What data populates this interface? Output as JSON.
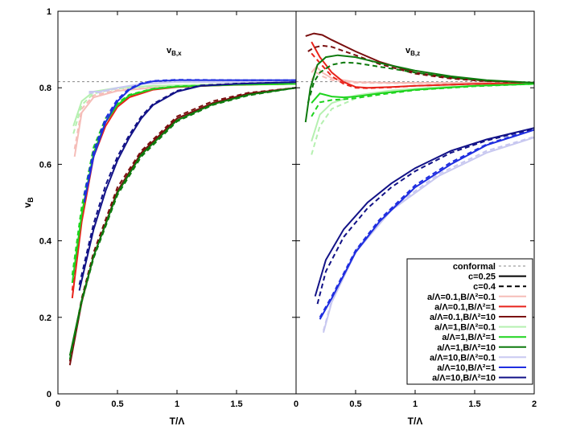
{
  "chart_data": [
    {
      "type": "line",
      "title": "v",
      "title_sub": "B,x",
      "xlabel": "T/Λ",
      "ylabel": "v",
      "ylabel_sub": "B",
      "xlim": [
        0,
        2
      ],
      "ylim": [
        0,
        1
      ],
      "xticks": [
        "0",
        "0.5",
        "1",
        "1.5",
        ""
      ],
      "yticks": [
        "0",
        "0.2",
        "0.4",
        "0.6",
        "0.8",
        "1"
      ],
      "series": [
        {
          "key": "conformal",
          "x": [
            0,
            2
          ],
          "y": [
            0.816,
            0.816
          ]
        },
        {
          "key": "a01_b01",
          "style": "solid",
          "x": [
            0.14,
            0.2,
            0.3,
            0.5,
            0.8,
            1.2,
            2.0
          ],
          "y": [
            0.62,
            0.735,
            0.775,
            0.792,
            0.8,
            0.805,
            0.81
          ]
        },
        {
          "key": "a01_b01",
          "style": "dashed",
          "x": [
            0.14,
            0.2,
            0.3,
            0.5,
            0.8,
            1.2,
            2.0
          ],
          "y": [
            0.64,
            0.745,
            0.78,
            0.794,
            0.801,
            0.806,
            0.81
          ]
        },
        {
          "key": "a01_b1",
          "style": "solid",
          "x": [
            0.12,
            0.2,
            0.3,
            0.4,
            0.5,
            0.6,
            0.8,
            1.0,
            1.5,
            2.0
          ],
          "y": [
            0.25,
            0.45,
            0.62,
            0.7,
            0.75,
            0.775,
            0.795,
            0.802,
            0.808,
            0.81
          ]
        },
        {
          "key": "a01_b1",
          "style": "dashed",
          "x": [
            0.12,
            0.2,
            0.3,
            0.4,
            0.5,
            0.6,
            0.8,
            1.0,
            1.5,
            2.0
          ],
          "y": [
            0.27,
            0.47,
            0.635,
            0.71,
            0.755,
            0.778,
            0.796,
            0.803,
            0.808,
            0.81
          ]
        },
        {
          "key": "a01_b10",
          "style": "solid",
          "x": [
            0.1,
            0.2,
            0.3,
            0.5,
            0.7,
            1.0,
            1.3,
            1.6,
            2.0
          ],
          "y": [
            0.075,
            0.24,
            0.36,
            0.53,
            0.63,
            0.72,
            0.76,
            0.785,
            0.8
          ]
        },
        {
          "key": "a01_b10",
          "style": "dashed",
          "x": [
            0.1,
            0.2,
            0.3,
            0.5,
            0.7,
            1.0,
            1.3,
            1.6,
            2.0
          ],
          "y": [
            0.085,
            0.25,
            0.37,
            0.54,
            0.635,
            0.725,
            0.765,
            0.787,
            0.8
          ]
        },
        {
          "key": "a1_b01",
          "style": "solid",
          "x": [
            0.13,
            0.2,
            0.3,
            0.5,
            0.8,
            1.2,
            2.0
          ],
          "y": [
            0.7,
            0.765,
            0.79,
            0.8,
            0.805,
            0.808,
            0.81
          ]
        },
        {
          "key": "a1_b01",
          "style": "dashed",
          "x": [
            0.13,
            0.2,
            0.3,
            0.5,
            0.8,
            1.2,
            2.0
          ],
          "y": [
            0.68,
            0.755,
            0.785,
            0.798,
            0.805,
            0.808,
            0.81
          ]
        },
        {
          "key": "a1_b1",
          "style": "solid",
          "x": [
            0.12,
            0.2,
            0.3,
            0.4,
            0.5,
            0.6,
            0.8,
            1.0,
            1.5,
            2.0
          ],
          "y": [
            0.29,
            0.47,
            0.63,
            0.71,
            0.755,
            0.78,
            0.797,
            0.803,
            0.808,
            0.81
          ]
        },
        {
          "key": "a1_b1",
          "style": "dashed",
          "x": [
            0.12,
            0.2,
            0.3,
            0.4,
            0.5,
            0.6,
            0.8,
            1.0,
            1.5,
            2.0
          ],
          "y": [
            0.31,
            0.49,
            0.645,
            0.72,
            0.76,
            0.782,
            0.798,
            0.804,
            0.808,
            0.81
          ]
        },
        {
          "key": "a1_b10",
          "style": "solid",
          "x": [
            0.1,
            0.2,
            0.3,
            0.5,
            0.7,
            1.0,
            1.3,
            1.6,
            2.0
          ],
          "y": [
            0.1,
            0.245,
            0.36,
            0.525,
            0.625,
            0.715,
            0.757,
            0.782,
            0.8
          ]
        },
        {
          "key": "a1_b10",
          "style": "dashed",
          "x": [
            0.1,
            0.2,
            0.3,
            0.5,
            0.7,
            1.0,
            1.3,
            1.6,
            2.0
          ],
          "y": [
            0.09,
            0.24,
            0.355,
            0.52,
            0.62,
            0.712,
            0.755,
            0.78,
            0.8
          ]
        },
        {
          "key": "a10_b01",
          "style": "solid",
          "x": [
            0.26,
            0.35,
            0.5,
            0.7,
            1.0,
            1.5,
            2.0
          ],
          "y": [
            0.79,
            0.79,
            0.8,
            0.81,
            0.815,
            0.815,
            0.815
          ]
        },
        {
          "key": "a10_b01",
          "style": "dashed",
          "x": [
            0.26,
            0.35,
            0.5,
            0.7,
            1.0,
            1.5,
            2.0
          ],
          "y": [
            0.786,
            0.788,
            0.799,
            0.81,
            0.815,
            0.815,
            0.815
          ]
        },
        {
          "key": "a10_b1",
          "style": "solid",
          "x": [
            0.22,
            0.3,
            0.4,
            0.5,
            0.6,
            0.7,
            0.8,
            1.0,
            1.5,
            2.0
          ],
          "y": [
            0.5,
            0.62,
            0.71,
            0.765,
            0.795,
            0.81,
            0.817,
            0.82,
            0.82,
            0.82
          ]
        },
        {
          "key": "a10_b1",
          "style": "dashed",
          "x": [
            0.22,
            0.3,
            0.4,
            0.5,
            0.6,
            0.7,
            0.8,
            1.0,
            1.5,
            2.0
          ],
          "y": [
            0.52,
            0.635,
            0.72,
            0.77,
            0.798,
            0.812,
            0.818,
            0.821,
            0.82,
            0.82
          ]
        },
        {
          "key": "a10_b10",
          "style": "solid",
          "x": [
            0.18,
            0.3,
            0.4,
            0.5,
            0.6,
            0.7,
            0.8,
            1.0,
            1.2,
            1.5,
            2.0
          ],
          "y": [
            0.27,
            0.43,
            0.53,
            0.61,
            0.67,
            0.72,
            0.755,
            0.79,
            0.805,
            0.81,
            0.815
          ]
        },
        {
          "key": "a10_b10",
          "style": "dashed",
          "x": [
            0.18,
            0.3,
            0.4,
            0.5,
            0.6,
            0.7,
            0.8,
            1.0,
            1.2,
            1.5,
            2.0
          ],
          "y": [
            0.285,
            0.445,
            0.545,
            0.62,
            0.677,
            0.725,
            0.758,
            0.792,
            0.806,
            0.811,
            0.815
          ]
        }
      ]
    },
    {
      "type": "line",
      "title": "v",
      "title_sub": "B,z",
      "xlabel": "T/Λ",
      "xlim": [
        0,
        2
      ],
      "ylim": [
        0,
        1
      ],
      "xticks": [
        "0",
        "0.5",
        "1",
        "1.5",
        "2"
      ],
      "series": [
        {
          "key": "conformal",
          "x": [
            0,
            2
          ],
          "y": [
            0.816,
            0.816
          ]
        },
        {
          "key": "a01_b01",
          "style": "solid",
          "x": [
            0.13,
            0.17,
            0.22,
            0.3,
            0.5,
            0.8,
            1.2,
            2.0
          ],
          "y": [
            0.84,
            0.855,
            0.84,
            0.825,
            0.815,
            0.813,
            0.813,
            0.813
          ]
        },
        {
          "key": "a01_b01",
          "style": "dashed",
          "x": [
            0.13,
            0.17,
            0.22,
            0.3,
            0.5,
            0.8,
            1.2,
            2.0
          ],
          "y": [
            0.82,
            0.84,
            0.83,
            0.82,
            0.813,
            0.812,
            0.812,
            0.813
          ]
        },
        {
          "key": "a01_b1",
          "style": "solid",
          "x": [
            0.13,
            0.2,
            0.3,
            0.4,
            0.5,
            0.6,
            0.8,
            1.0,
            1.5,
            2.0
          ],
          "y": [
            0.92,
            0.88,
            0.84,
            0.815,
            0.802,
            0.8,
            0.802,
            0.805,
            0.81,
            0.812
          ]
        },
        {
          "key": "a01_b1",
          "style": "dashed",
          "x": [
            0.13,
            0.2,
            0.3,
            0.4,
            0.5,
            0.6,
            0.8,
            1.0,
            1.5,
            2.0
          ],
          "y": [
            0.89,
            0.865,
            0.83,
            0.81,
            0.8,
            0.799,
            0.801,
            0.805,
            0.81,
            0.812
          ]
        },
        {
          "key": "a01_b10",
          "style": "solid",
          "x": [
            0.08,
            0.15,
            0.22,
            0.3,
            0.5,
            0.7,
            1.0,
            1.3,
            1.6,
            2.0
          ],
          "y": [
            0.935,
            0.942,
            0.938,
            0.925,
            0.895,
            0.868,
            0.84,
            0.826,
            0.818,
            0.813
          ]
        },
        {
          "key": "a01_b10",
          "style": "dashed",
          "x": [
            0.1,
            0.15,
            0.22,
            0.3,
            0.5,
            0.7,
            1.0,
            1.3,
            1.6,
            2.0
          ],
          "y": [
            0.895,
            0.905,
            0.91,
            0.907,
            0.885,
            0.862,
            0.837,
            0.824,
            0.817,
            0.813
          ]
        },
        {
          "key": "a1_b01",
          "style": "solid",
          "x": [
            0.13,
            0.2,
            0.3,
            0.5,
            0.8,
            1.2,
            2.0
          ],
          "y": [
            0.66,
            0.73,
            0.76,
            0.78,
            0.793,
            0.802,
            0.81
          ]
        },
        {
          "key": "a1_b01",
          "style": "dashed",
          "x": [
            0.13,
            0.2,
            0.3,
            0.5,
            0.8,
            1.2,
            2.0
          ],
          "y": [
            0.625,
            0.7,
            0.745,
            0.772,
            0.79,
            0.8,
            0.81
          ]
        },
        {
          "key": "a1_b1",
          "style": "solid",
          "x": [
            0.13,
            0.2,
            0.3,
            0.4,
            0.5,
            0.7,
            1.0,
            1.5,
            2.0
          ],
          "y": [
            0.76,
            0.785,
            0.777,
            0.775,
            0.777,
            0.785,
            0.795,
            0.805,
            0.81
          ]
        },
        {
          "key": "a1_b1",
          "style": "dashed",
          "x": [
            0.13,
            0.2,
            0.3,
            0.4,
            0.5,
            0.7,
            1.0,
            1.5,
            2.0
          ],
          "y": [
            0.725,
            0.762,
            0.768,
            0.77,
            0.773,
            0.782,
            0.794,
            0.804,
            0.81
          ]
        },
        {
          "key": "a1_b10",
          "style": "solid",
          "x": [
            0.08,
            0.12,
            0.18,
            0.25,
            0.35,
            0.5,
            0.7,
            1.0,
            1.3,
            1.6,
            2.0
          ],
          "y": [
            0.71,
            0.8,
            0.86,
            0.88,
            0.885,
            0.88,
            0.865,
            0.845,
            0.83,
            0.82,
            0.813
          ]
        },
        {
          "key": "a1_b10",
          "style": "dashed",
          "x": [
            0.1,
            0.15,
            0.2,
            0.3,
            0.4,
            0.5,
            0.7,
            1.0,
            1.3,
            1.6,
            2.0
          ],
          "y": [
            0.76,
            0.815,
            0.84,
            0.86,
            0.866,
            0.865,
            0.855,
            0.84,
            0.827,
            0.819,
            0.813
          ]
        },
        {
          "key": "a10_b01",
          "style": "solid",
          "x": [
            0.23,
            0.3,
            0.5,
            0.8,
            1.2,
            1.6,
            2.0
          ],
          "y": [
            0.16,
            0.24,
            0.37,
            0.48,
            0.57,
            0.63,
            0.67
          ]
        },
        {
          "key": "a10_b01",
          "style": "dashed",
          "x": [
            0.23,
            0.3,
            0.5,
            0.8,
            1.2,
            1.6,
            2.0
          ],
          "y": [
            0.165,
            0.245,
            0.375,
            0.485,
            0.575,
            0.635,
            0.672
          ]
        },
        {
          "key": "a10_b1",
          "style": "solid",
          "x": [
            0.2,
            0.3,
            0.5,
            0.7,
            1.0,
            1.3,
            1.6,
            2.0
          ],
          "y": [
            0.195,
            0.25,
            0.37,
            0.45,
            0.54,
            0.6,
            0.65,
            0.69
          ]
        },
        {
          "key": "a10_b1",
          "style": "dashed",
          "x": [
            0.2,
            0.3,
            0.5,
            0.7,
            1.0,
            1.3,
            1.6,
            2.0
          ],
          "y": [
            0.2,
            0.255,
            0.375,
            0.455,
            0.545,
            0.605,
            0.652,
            0.692
          ]
        },
        {
          "key": "a10_b10",
          "style": "solid",
          "x": [
            0.16,
            0.25,
            0.4,
            0.6,
            0.8,
            1.0,
            1.3,
            1.6,
            2.0
          ],
          "y": [
            0.255,
            0.35,
            0.43,
            0.5,
            0.55,
            0.59,
            0.635,
            0.665,
            0.695
          ]
        },
        {
          "key": "a10_b10",
          "style": "dashed",
          "x": [
            0.18,
            0.25,
            0.4,
            0.6,
            0.8,
            1.0,
            1.3,
            1.6,
            2.0
          ],
          "y": [
            0.235,
            0.32,
            0.41,
            0.485,
            0.54,
            0.582,
            0.63,
            0.662,
            0.693
          ]
        }
      ]
    }
  ],
  "legend": {
    "placement": "bottom-right",
    "entries": [
      {
        "label": "conformal",
        "key": "conformal",
        "style": "dotted",
        "color": "#888888"
      },
      {
        "label": "c=0.25",
        "style": "solid",
        "color": "#000000"
      },
      {
        "label": "c=0.4",
        "style": "dashed",
        "color": "#000000"
      },
      {
        "label": "a/Λ=0.1,B/Λ²=0.1",
        "key": "a01_b01",
        "style": "solid",
        "color": "#f5bdb8"
      },
      {
        "label": "a/Λ=0.1,B/Λ²=1",
        "key": "a01_b1",
        "style": "solid",
        "color": "#e8231b"
      },
      {
        "label": "a/Λ=0.1,B/Λ²=10",
        "key": "a01_b10",
        "style": "solid",
        "color": "#7a0f0f"
      },
      {
        "label": "a/Λ=1,B/Λ²=0.1",
        "key": "a1_b01",
        "style": "solid",
        "color": "#b5f0b0"
      },
      {
        "label": "a/Λ=1,B/Λ²=1",
        "key": "a1_b1",
        "style": "solid",
        "color": "#1ed41e"
      },
      {
        "label": "a/Λ=1,B/Λ²=10",
        "key": "a1_b10",
        "style": "solid",
        "color": "#0e7a0e"
      },
      {
        "label": "a/Λ=10,B/Λ²=0.1",
        "key": "a10_b01",
        "style": "solid",
        "color": "#c8c8f0"
      },
      {
        "label": "a/Λ=10,B/Λ²=1",
        "key": "a10_b1",
        "style": "solid",
        "color": "#1f2ee0"
      },
      {
        "label": "a/Λ=10,B/Λ²=10",
        "key": "a10_b10",
        "style": "solid",
        "color": "#121287"
      }
    ]
  }
}
